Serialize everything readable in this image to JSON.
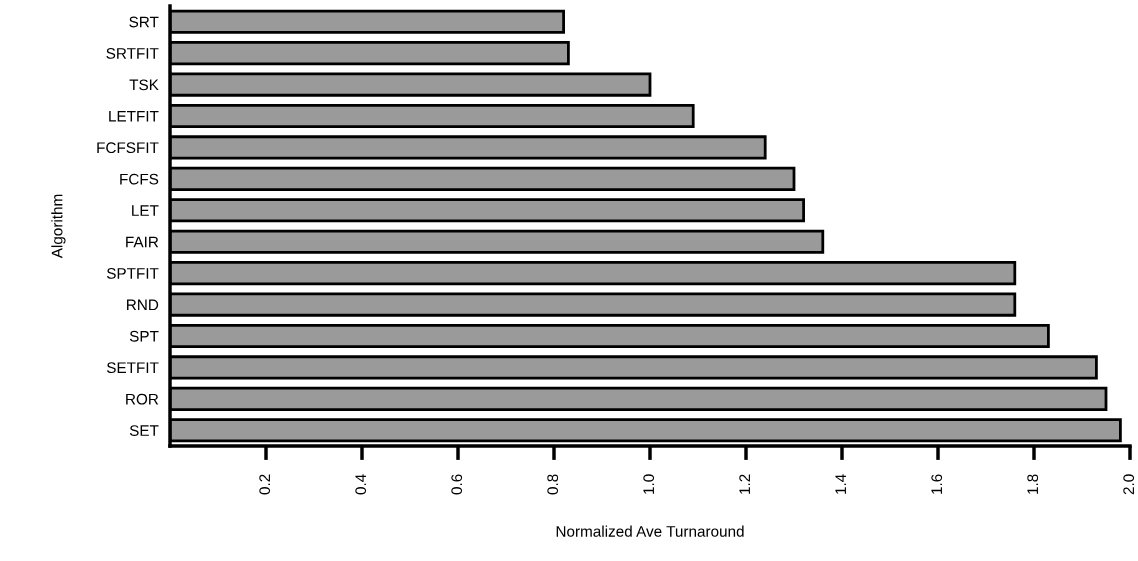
{
  "chart_data": {
    "type": "bar",
    "orientation": "horizontal",
    "xlabel": "Normalized Ave Turnaround",
    "ylabel": "Algorithm",
    "categories": [
      "SRT",
      "SRTFIT",
      "TSK",
      "LETFIT",
      "FCFSFIT",
      "FCFS",
      "LET",
      "FAIR",
      "SPTFIT",
      "RND",
      "SPT",
      "SETFIT",
      "ROR",
      "SET"
    ],
    "values": [
      0.82,
      0.83,
      1.0,
      1.09,
      1.24,
      1.3,
      1.32,
      1.36,
      1.76,
      1.76,
      1.83,
      1.93,
      1.95,
      1.98
    ],
    "color": "#9a9a9a",
    "xlim": [
      0,
      2.0
    ],
    "xticks": [
      0.2,
      0.4,
      0.6,
      0.8,
      {
        "value": 1,
        "label": "1.0"
      },
      1.2,
      1.4,
      1.6,
      1.8,
      {
        "value": 2,
        "label": "2.0"
      }
    ],
    "grid": false
  }
}
